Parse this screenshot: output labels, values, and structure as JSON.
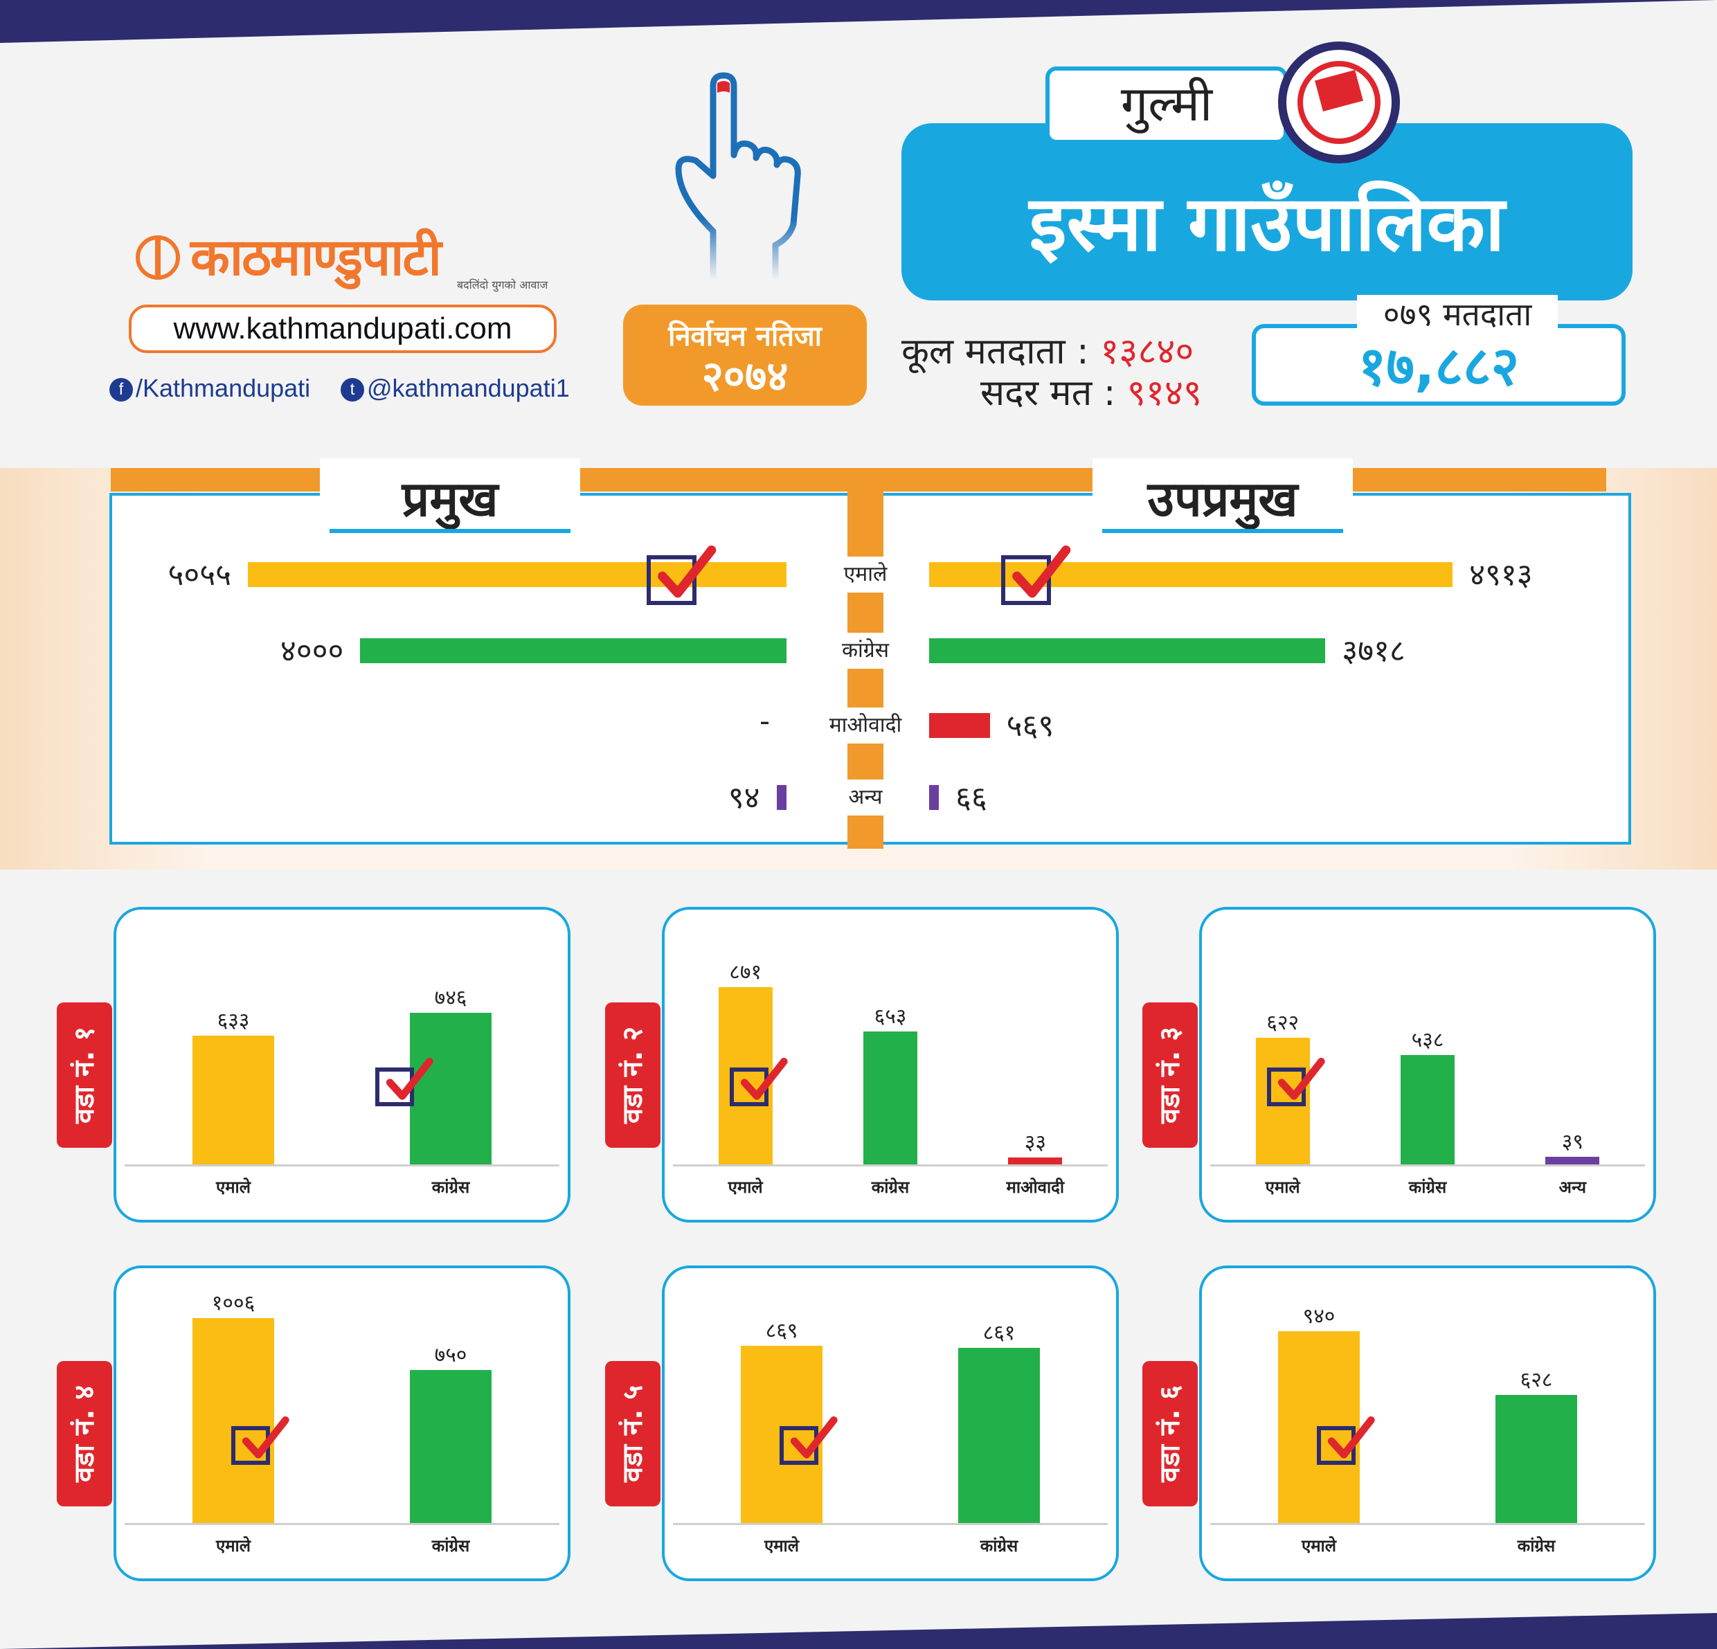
{
  "header": {
    "logo_text": "काठमाण्डुपाटी",
    "logo_tagline": "बदलिंदो युगको आवाज",
    "website": "www.kathmandupati.com",
    "facebook": "/Kathmandupati",
    "twitter": "@kathmandupati1",
    "result_line1": "निर्वाचन नतिजा",
    "result_line2": "२०७४",
    "district": "गुल्मी",
    "title": "इस्मा गाउँपालिका",
    "total_voters_label": "कूल मतदाता :",
    "total_voters_value": "१३८४०",
    "valid_votes_label": "सदर मत :",
    "valid_votes_value": "९१४९",
    "voters_079_label": "०७९ मतदाता",
    "voters_079_value": "१७,८८२"
  },
  "colors": {
    "uml": "#fbbd13",
    "congress": "#22b04b",
    "maoist": "#e0262d",
    "other": "#6b3fa0",
    "accent": "#19a7e0",
    "orange": "#f19a2b"
  },
  "chart_data": [
    {
      "type": "bar",
      "title": "प्रमुख",
      "categories": [
        "एमाले",
        "कांग्रेस",
        "माओवादी",
        "अन्य"
      ],
      "values": [
        5055,
        4000,
        null,
        94
      ],
      "value_labels": [
        "५०५५",
        "४०००",
        "-",
        "९४"
      ],
      "winner": "एमाले"
    },
    {
      "type": "bar",
      "title": "उपप्रमुख",
      "categories": [
        "एमाले",
        "कांग्रेस",
        "माओवादी",
        "अन्य"
      ],
      "values": [
        4913,
        3718,
        569,
        66
      ],
      "value_labels": [
        "४९१३",
        "३७१८",
        "५६९",
        "६६"
      ],
      "winner": "एमाले"
    },
    {
      "type": "bar",
      "title": "वडा नं. १",
      "categories": [
        "एमाले",
        "कांग्रेस"
      ],
      "values": [
        633,
        746
      ],
      "value_labels": [
        "६३३",
        "७४६"
      ],
      "winner": "कांग्रेस"
    },
    {
      "type": "bar",
      "title": "वडा नं. २",
      "categories": [
        "एमाले",
        "कांग्रेस",
        "माओवादी"
      ],
      "values": [
        871,
        653,
        33
      ],
      "value_labels": [
        "८७१",
        "६५३",
        "३३"
      ],
      "winner": "एमाले"
    },
    {
      "type": "bar",
      "title": "वडा नं. ३",
      "categories": [
        "एमाले",
        "कांग्रेस",
        "अन्य"
      ],
      "values": [
        622,
        538,
        39
      ],
      "value_labels": [
        "६२२",
        "५३८",
        "३९"
      ],
      "winner": "एमाले"
    },
    {
      "type": "bar",
      "title": "वडा नं. ४",
      "categories": [
        "एमाले",
        "कांग्रेस"
      ],
      "values": [
        1006,
        750
      ],
      "value_labels": [
        "१००६",
        "७५०"
      ],
      "winner": "एमाले"
    },
    {
      "type": "bar",
      "title": "वडा नं. ५",
      "categories": [
        "एमाले",
        "कांग्रेस"
      ],
      "values": [
        869,
        861
      ],
      "value_labels": [
        "८६९",
        "८६१"
      ],
      "winner": "एमाले"
    },
    {
      "type": "bar",
      "title": "वडा नं. ६",
      "categories": [
        "एमाले",
        "कांग्रेस"
      ],
      "values": [
        940,
        628
      ],
      "value_labels": [
        "९४०",
        "६२८"
      ],
      "winner": "एमाले"
    }
  ]
}
